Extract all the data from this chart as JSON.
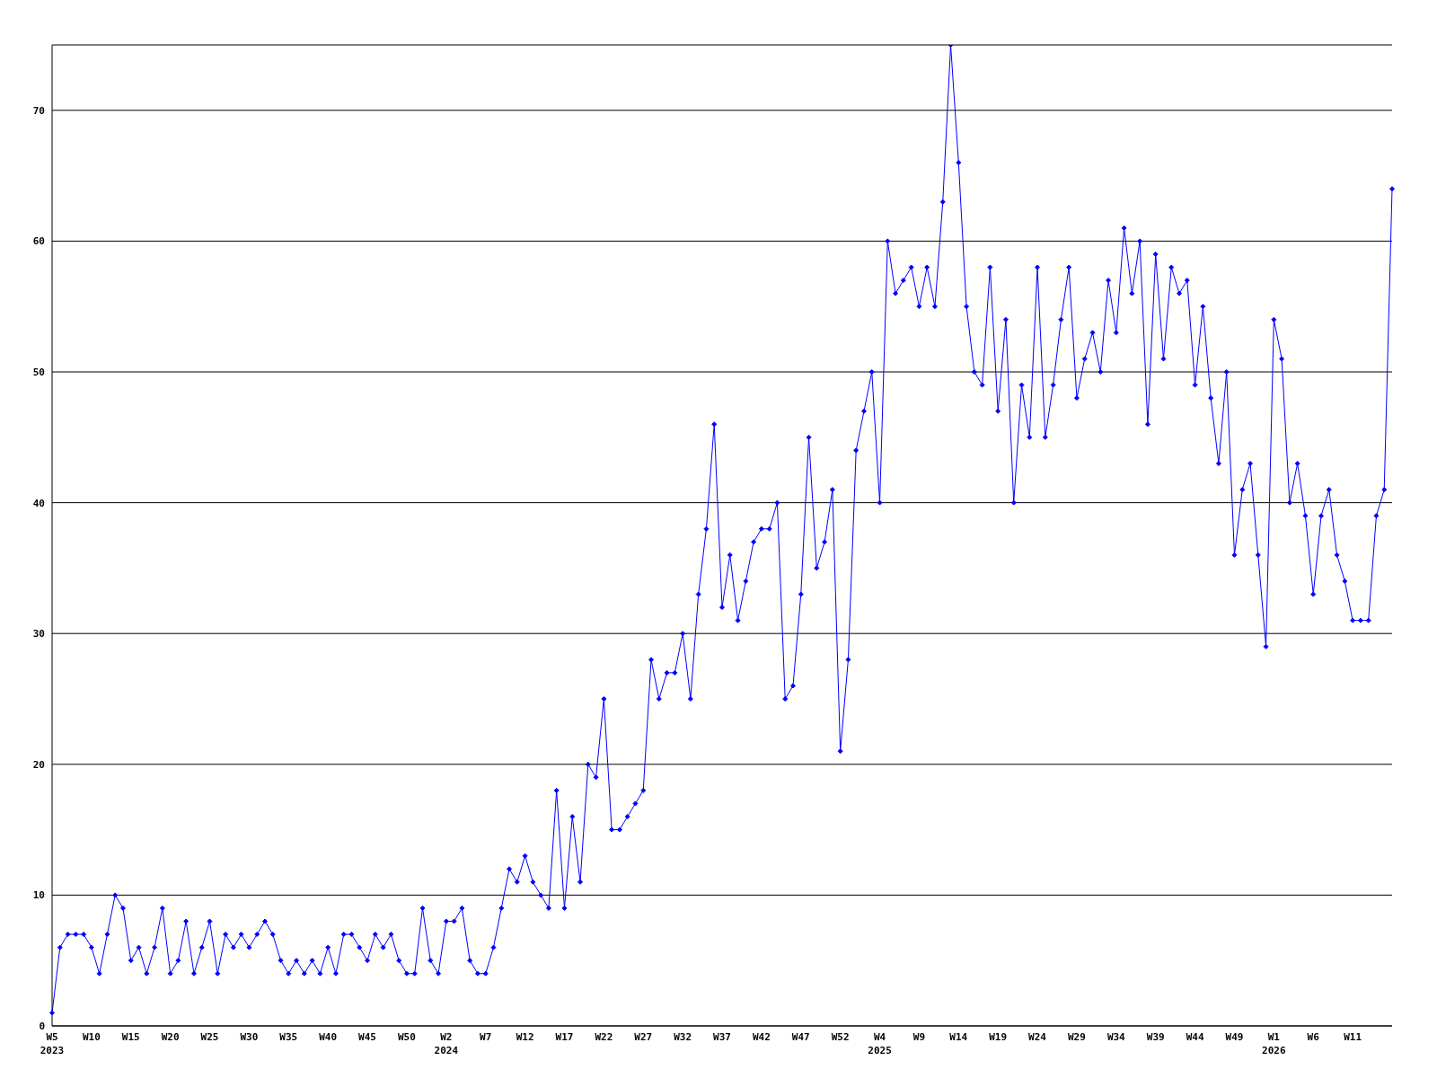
{
  "chart_data": {
    "type": "line",
    "categories": [
      "W5\n2023",
      null,
      null,
      null,
      null,
      "W10",
      null,
      null,
      null,
      null,
      "W15",
      null,
      null,
      null,
      null,
      "W20",
      null,
      null,
      null,
      null,
      "W25",
      null,
      null,
      null,
      null,
      "W30",
      null,
      null,
      null,
      null,
      "W35",
      null,
      null,
      null,
      null,
      "W40",
      null,
      null,
      null,
      null,
      "W45",
      null,
      null,
      null,
      null,
      "W50",
      null,
      null,
      null,
      null,
      "W2\n2024",
      null,
      null,
      null,
      null,
      "W7",
      null,
      null,
      null,
      null,
      "W12",
      null,
      null,
      null,
      null,
      "W17",
      null,
      null,
      null,
      null,
      "W22",
      null,
      null,
      null,
      null,
      "W27",
      null,
      null,
      null,
      null,
      "W32",
      null,
      null,
      null,
      null,
      "W37",
      null,
      null,
      null,
      null,
      "W42",
      null,
      null,
      null,
      null,
      "W47",
      null,
      null,
      null,
      null,
      "W52",
      null,
      null,
      null,
      null,
      "W4\n2025",
      null,
      null,
      null,
      null,
      "W9",
      null,
      null,
      null,
      null,
      "W14",
      null,
      null,
      null,
      null,
      "W19",
      null,
      null,
      null,
      null,
      "W24",
      null,
      null,
      null,
      null,
      "W29",
      null,
      null,
      null,
      null,
      "W34",
      null,
      null,
      null,
      null,
      "W39",
      null,
      null,
      null,
      null,
      "W44",
      null,
      null,
      null,
      null,
      "W49",
      null,
      null,
      null,
      null,
      "W1\n2026",
      null,
      null,
      null,
      null,
      "W6",
      null,
      null,
      null,
      null,
      "W11",
      null,
      null,
      null,
      null,
      null
    ],
    "series": [
      {
        "color": "#0000ff",
        "values": [
          1,
          6,
          7,
          7,
          7,
          6,
          4,
          7,
          10,
          9,
          5,
          6,
          4,
          6,
          9,
          4,
          5,
          8,
          4,
          6,
          8,
          4,
          7,
          6,
          7,
          6,
          7,
          8,
          7,
          5,
          4,
          5,
          4,
          5,
          4,
          6,
          4,
          7,
          7,
          6,
          5,
          7,
          6,
          7,
          5,
          4,
          4,
          9,
          5,
          4,
          8,
          8,
          9,
          5,
          4,
          4,
          6,
          9,
          12,
          11,
          13,
          11,
          10,
          9,
          18,
          9,
          16,
          11,
          20,
          19,
          25,
          15,
          15,
          16,
          17,
          18,
          28,
          25,
          27,
          27,
          30,
          25,
          33,
          38,
          46,
          32,
          36,
          31,
          34,
          37,
          38,
          38,
          40,
          25,
          26,
          33,
          45,
          35,
          37,
          41,
          21,
          28,
          44,
          47,
          50,
          40,
          60,
          56,
          57,
          58,
          55,
          58,
          55,
          63,
          75,
          66,
          55,
          50,
          49,
          58,
          47,
          54,
          40,
          49,
          45,
          58,
          45,
          49,
          54,
          58,
          48,
          51,
          53,
          50,
          57,
          53,
          61,
          56,
          60,
          46,
          59,
          51,
          58,
          56,
          57,
          49,
          55,
          48,
          43,
          50,
          36,
          41,
          43,
          36,
          29,
          54,
          51,
          40,
          43,
          39,
          33,
          39,
          41,
          36,
          34,
          31,
          31,
          31,
          39,
          41,
          64
        ]
      }
    ],
    "ylim": [
      0,
      75
    ],
    "yticks": [
      0,
      10,
      20,
      30,
      40,
      50,
      60,
      70
    ],
    "grid": "y",
    "legend": false,
    "marker": "diamond",
    "line_style": "solid"
  }
}
